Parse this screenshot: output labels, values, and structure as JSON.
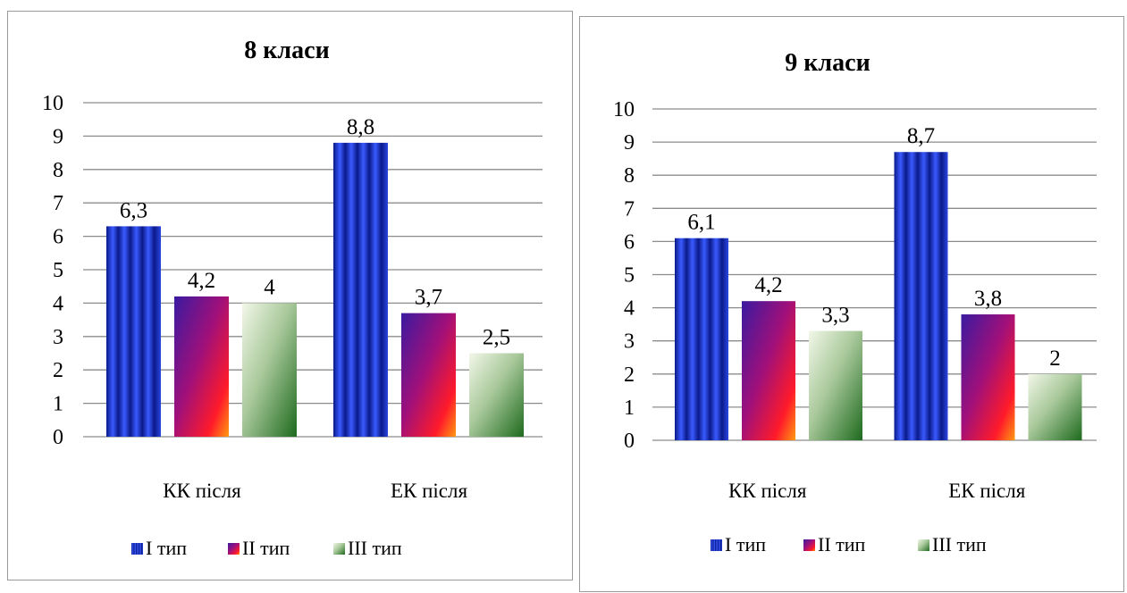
{
  "chart_data": [
    {
      "type": "bar",
      "title": "8 класи",
      "categories": [
        "КК після",
        "ЕК після"
      ],
      "series": [
        {
          "name": "I тип",
          "values": [
            6.3,
            8.8
          ],
          "labels": [
            "6,3",
            "8,8"
          ]
        },
        {
          "name": "II тип",
          "values": [
            4.2,
            3.7
          ],
          "labels": [
            "4,2",
            "3,7"
          ]
        },
        {
          "name": "III тип",
          "values": [
            4,
            2.5
          ],
          "labels": [
            "4",
            "2,5"
          ]
        }
      ],
      "yticks": [
        "0",
        "1",
        "2",
        "3",
        "4",
        "5",
        "6",
        "7",
        "8",
        "9",
        "10"
      ],
      "ylim": [
        0,
        10
      ],
      "grid": true,
      "legend_position": "bottom"
    },
    {
      "type": "bar",
      "title": "9 класи",
      "categories": [
        "КК після",
        "ЕК після"
      ],
      "series": [
        {
          "name": "I тип",
          "values": [
            6.1,
            8.7
          ],
          "labels": [
            "6,1",
            "8,7"
          ]
        },
        {
          "name": "II тип",
          "values": [
            4.2,
            3.8
          ],
          "labels": [
            "4,2",
            "3,8"
          ]
        },
        {
          "name": "III тип",
          "values": [
            3.3,
            2
          ],
          "labels": [
            "3,3",
            "2"
          ]
        }
      ],
      "yticks": [
        "0",
        "1",
        "2",
        "3",
        "4",
        "5",
        "6",
        "7",
        "8",
        "9",
        "10"
      ],
      "ylim": [
        0,
        10
      ],
      "grid": true,
      "legend_position": "bottom"
    }
  ]
}
